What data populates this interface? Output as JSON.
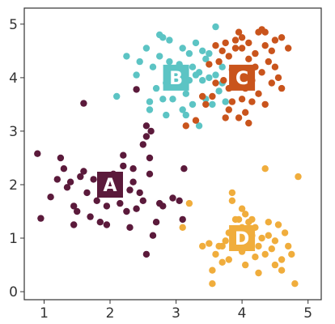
{
  "chart_data": {
    "type": "scatter",
    "xlim": [
      0.7,
      5.2
    ],
    "ylim": [
      -0.15,
      5.3
    ],
    "x_ticks": [
      1,
      2,
      3,
      4,
      5
    ],
    "y_ticks": [
      0,
      1,
      2,
      3,
      4,
      5
    ],
    "grid": false,
    "colors": {
      "A": "#5b1a3b",
      "B": "#5cc4c4",
      "C": "#c9541c",
      "D": "#f0ad3c"
    },
    "series": [
      {
        "name": "A",
        "centroid": [
          2.0,
          2.0
        ],
        "points": [
          [
            0.9,
            2.58
          ],
          [
            0.95,
            1.37
          ],
          [
            1.1,
            1.77
          ],
          [
            1.25,
            2.5
          ],
          [
            1.3,
            2.3
          ],
          [
            1.2,
            2.1
          ],
          [
            1.35,
            1.95
          ],
          [
            1.4,
            2.05
          ],
          [
            1.45,
            1.6
          ],
          [
            1.5,
            1.5
          ],
          [
            1.45,
            1.25
          ],
          [
            1.55,
            2.15
          ],
          [
            1.6,
            2.25
          ],
          [
            1.65,
            1.85
          ],
          [
            1.7,
            1.4
          ],
          [
            1.6,
            3.52
          ],
          [
            1.75,
            2.1
          ],
          [
            1.8,
            1.7
          ],
          [
            1.85,
            1.3
          ],
          [
            1.9,
            1.95
          ],
          [
            1.95,
            1.6
          ],
          [
            1.95,
            1.25
          ],
          [
            2.05,
            2.2
          ],
          [
            2.1,
            1.85
          ],
          [
            2.15,
            1.65
          ],
          [
            2.2,
            2.55
          ],
          [
            2.2,
            2.35
          ],
          [
            2.25,
            1.5
          ],
          [
            2.3,
            1.9
          ],
          [
            2.3,
            1.2
          ],
          [
            2.35,
            2.3
          ],
          [
            2.35,
            2.05
          ],
          [
            2.4,
            1.55
          ],
          [
            2.45,
            1.85
          ],
          [
            2.5,
            1.7
          ],
          [
            2.5,
            2.75
          ],
          [
            2.55,
            2.9
          ],
          [
            2.55,
            3.1
          ],
          [
            2.6,
            2.5
          ],
          [
            2.6,
            2.2
          ],
          [
            2.62,
            3.0
          ],
          [
            2.65,
            1.05
          ],
          [
            2.55,
            0.7
          ],
          [
            2.7,
            1.3
          ],
          [
            2.75,
            1.65
          ],
          [
            2.8,
            1.6
          ],
          [
            2.4,
            3.78
          ],
          [
            2.95,
            1.75
          ],
          [
            3.05,
            1.7
          ],
          [
            3.1,
            1.35
          ],
          [
            3.12,
            2.3
          ]
        ]
      },
      {
        "name": "B",
        "centroid": [
          3.0,
          4.0
        ],
        "points": [
          [
            2.1,
            3.65
          ],
          [
            2.25,
            4.4
          ],
          [
            2.4,
            4.05
          ],
          [
            2.45,
            4.3
          ],
          [
            2.55,
            4.55
          ],
          [
            2.6,
            3.4
          ],
          [
            2.6,
            3.55
          ],
          [
            2.65,
            4.2
          ],
          [
            2.7,
            3.8
          ],
          [
            2.75,
            4.4
          ],
          [
            2.75,
            4.8
          ],
          [
            2.8,
            3.6
          ],
          [
            2.8,
            4.75
          ],
          [
            2.85,
            3.9
          ],
          [
            2.85,
            3.3
          ],
          [
            2.9,
            4.7
          ],
          [
            2.9,
            4.05
          ],
          [
            2.95,
            3.6
          ],
          [
            3.0,
            3.85
          ],
          [
            3.05,
            4.25
          ],
          [
            3.1,
            3.4
          ],
          [
            3.1,
            4.55
          ],
          [
            3.15,
            3.7
          ],
          [
            3.2,
            3.95
          ],
          [
            3.25,
            4.2
          ],
          [
            3.25,
            3.5
          ],
          [
            3.3,
            4.65
          ],
          [
            3.35,
            4.1
          ],
          [
            3.4,
            3.95
          ],
          [
            3.45,
            3.6
          ],
          [
            3.45,
            4.35
          ],
          [
            3.5,
            4.0
          ],
          [
            3.55,
            3.5
          ],
          [
            3.6,
            4.05
          ],
          [
            3.65,
            3.75
          ],
          [
            3.7,
            4.2
          ],
          [
            3.75,
            3.55
          ],
          [
            3.6,
            4.95
          ],
          [
            3.4,
            4.5
          ],
          [
            2.9,
            4.3
          ],
          [
            3.35,
            3.1
          ],
          [
            3.2,
            4.45
          ],
          [
            3.5,
            4.45
          ],
          [
            3.7,
            3.9
          ],
          [
            3.3,
            4.05
          ],
          [
            3.15,
            3.3
          ]
        ]
      },
      {
        "name": "C",
        "centroid": [
          4.0,
          4.0
        ],
        "points": [
          [
            3.15,
            3.1
          ],
          [
            3.3,
            3.2
          ],
          [
            3.4,
            3.65
          ],
          [
            3.5,
            4.25
          ],
          [
            3.6,
            4.6
          ],
          [
            3.65,
            4.3
          ],
          [
            3.7,
            4.5
          ],
          [
            3.72,
            3.95
          ],
          [
            3.75,
            4.65
          ],
          [
            3.8,
            3.8
          ],
          [
            3.8,
            4.4
          ],
          [
            3.85,
            4.15
          ],
          [
            3.85,
            3.55
          ],
          [
            3.9,
            4.7
          ],
          [
            3.9,
            3.95
          ],
          [
            3.95,
            3.25
          ],
          [
            4.0,
            3.6
          ],
          [
            4.0,
            4.55
          ],
          [
            4.05,
            3.35
          ],
          [
            4.05,
            3.8
          ],
          [
            4.1,
            4.35
          ],
          [
            4.1,
            4.65
          ],
          [
            4.15,
            3.55
          ],
          [
            4.15,
            3.95
          ],
          [
            4.2,
            4.2
          ],
          [
            4.2,
            4.45
          ],
          [
            4.25,
            3.7
          ],
          [
            4.3,
            4.1
          ],
          [
            4.3,
            4.9
          ],
          [
            4.35,
            3.5
          ],
          [
            4.35,
            4.6
          ],
          [
            4.4,
            4.3
          ],
          [
            4.45,
            3.9
          ],
          [
            4.5,
            4.2
          ],
          [
            4.55,
            4.0
          ],
          [
            4.6,
            3.8
          ],
          [
            4.6,
            4.75
          ],
          [
            4.7,
            4.55
          ],
          [
            4.25,
            4.85
          ],
          [
            4.5,
            4.7
          ],
          [
            3.95,
            4.85
          ],
          [
            3.45,
            3.5
          ],
          [
            3.55,
            3.65
          ],
          [
            3.75,
            3.25
          ],
          [
            4.1,
            3.15
          ],
          [
            3.9,
            4.55
          ],
          [
            4.0,
            4.75
          ],
          [
            3.6,
            3.9
          ],
          [
            4.35,
            4.85
          ],
          [
            3.8,
            3.4
          ],
          [
            4.45,
            4.5
          ]
        ]
      },
      {
        "name": "D",
        "centroid": [
          4.0,
          1.0
        ],
        "points": [
          [
            3.1,
            1.2
          ],
          [
            3.2,
            1.65
          ],
          [
            3.4,
            0.85
          ],
          [
            3.5,
            0.9
          ],
          [
            3.55,
            0.4
          ],
          [
            3.55,
            0.15
          ],
          [
            3.6,
            0.7
          ],
          [
            3.65,
            0.85
          ],
          [
            3.7,
            0.85
          ],
          [
            3.7,
            0.55
          ],
          [
            3.75,
            0.95
          ],
          [
            3.8,
            1.1
          ],
          [
            3.85,
            1.7
          ],
          [
            3.85,
            1.85
          ],
          [
            3.9,
            1.35
          ],
          [
            3.95,
            1.0
          ],
          [
            4.0,
            1.2
          ],
          [
            4.0,
            0.75
          ],
          [
            4.05,
            1.45
          ],
          [
            4.05,
            0.5
          ],
          [
            4.1,
            1.3
          ],
          [
            4.1,
            0.95
          ],
          [
            4.15,
            1.05
          ],
          [
            4.15,
            1.35
          ],
          [
            4.2,
            1.2
          ],
          [
            4.2,
            0.65
          ],
          [
            4.25,
            0.85
          ],
          [
            4.25,
            0.35
          ],
          [
            4.3,
            1.0
          ],
          [
            4.35,
            0.7
          ],
          [
            4.35,
            2.3
          ],
          [
            4.4,
            1.3
          ],
          [
            4.4,
            1.05
          ],
          [
            4.45,
            0.8
          ],
          [
            4.5,
            0.95
          ],
          [
            4.5,
            0.5
          ],
          [
            4.55,
            1.25
          ],
          [
            4.6,
            0.4
          ],
          [
            4.6,
            0.6
          ],
          [
            4.65,
            1.1
          ],
          [
            4.7,
            0.85
          ],
          [
            4.75,
            0.7
          ],
          [
            4.8,
            0.15
          ],
          [
            4.85,
            2.15
          ],
          [
            4.0,
            1.55
          ],
          [
            4.05,
            1.1
          ],
          [
            3.95,
            1.35
          ],
          [
            3.8,
            0.6
          ]
        ]
      }
    ]
  }
}
